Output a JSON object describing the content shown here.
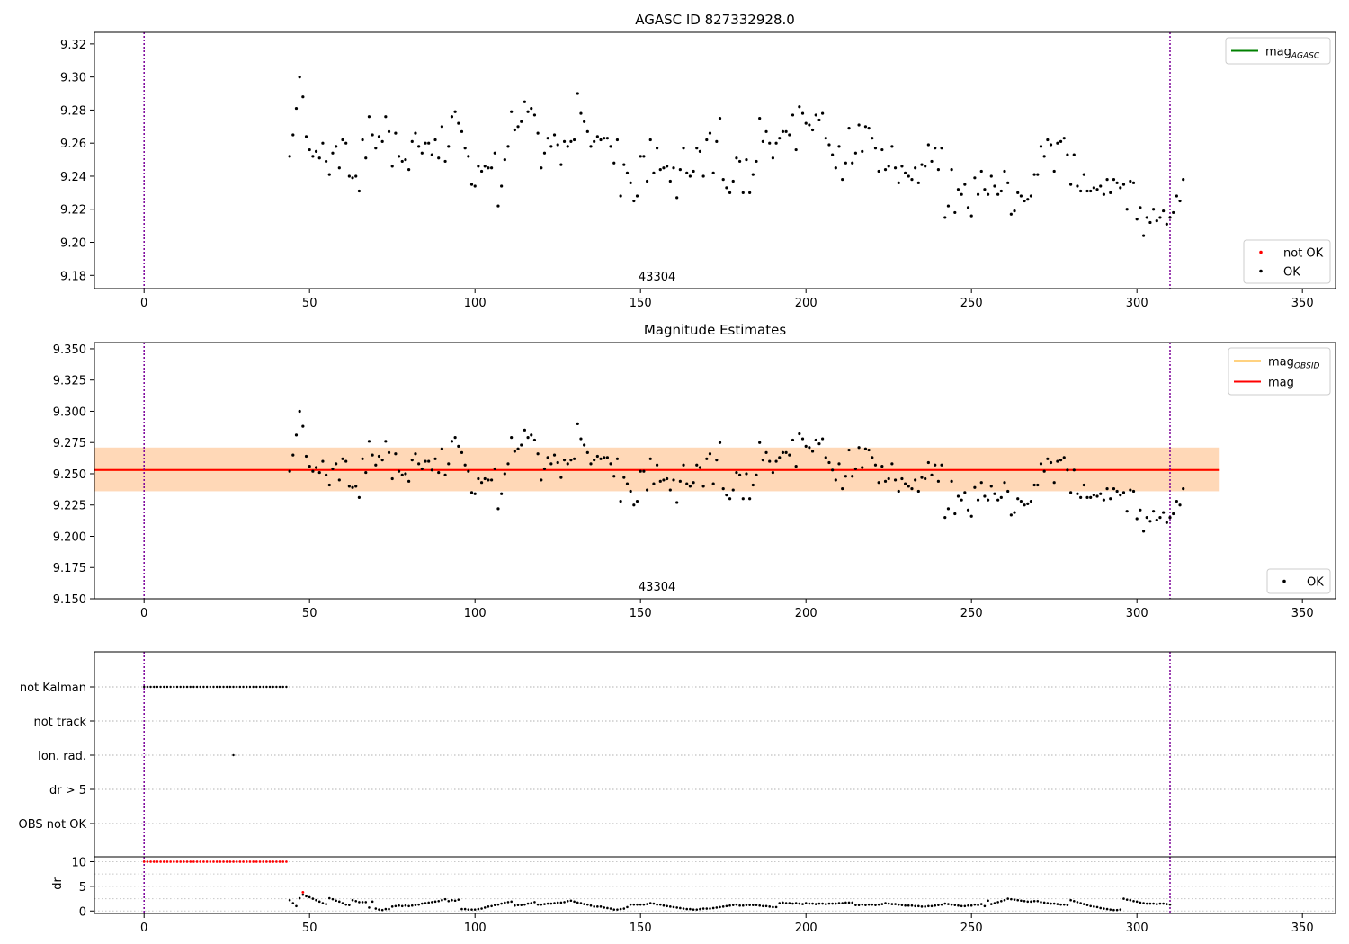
{
  "chart_data": [
    {
      "id": "panel1",
      "type": "scatter",
      "title": "AGASC ID 827332928.0",
      "xlim": [
        -15,
        360
      ],
      "ylim": [
        9.172,
        9.327
      ],
      "xticks": [
        0,
        50,
        100,
        150,
        200,
        250,
        300,
        350
      ],
      "yticks": [
        9.18,
        9.2,
        9.22,
        9.24,
        9.26,
        9.28,
        9.3,
        9.32
      ],
      "ytick_decimals": 2,
      "vlines": [
        0,
        310
      ],
      "obsid_label": "43304",
      "obsid_label_x": 155,
      "legend_top": [
        {
          "label": "mag",
          "sub": "AGASC",
          "color": "#008000",
          "kind": "line"
        }
      ],
      "legend_bottom": [
        {
          "label": "not OK",
          "color": "#ff0000",
          "kind": "dot"
        },
        {
          "label": "OK",
          "color": "#000000",
          "kind": "dot"
        }
      ],
      "series": [
        {
          "name": "OK",
          "color": "#000000",
          "x_start": 44,
          "x_step": 1,
          "values": [
            9.252,
            9.265,
            9.281,
            9.3,
            9.288,
            9.264,
            9.256,
            9.252,
            9.255,
            9.251,
            9.26,
            9.249,
            9.241,
            9.254,
            9.258,
            9.245,
            9.262,
            9.26,
            9.24,
            9.239,
            9.24,
            9.231,
            9.262,
            9.251,
            9.276,
            9.265,
            9.257,
            9.264,
            9.261,
            9.276,
            9.267,
            9.246,
            9.266,
            9.252,
            9.249,
            9.25,
            9.244,
            9.261,
            9.266,
            9.258,
            9.254,
            9.26,
            9.26,
            9.253,
            9.262,
            9.251,
            9.27,
            9.249,
            9.258,
            9.276,
            9.279,
            9.272,
            9.267,
            9.257,
            9.252,
            9.235,
            9.234,
            9.246,
            9.243,
            9.246,
            9.245,
            9.245,
            9.254,
            9.222,
            9.234,
            9.25,
            9.258,
            9.279,
            9.268,
            9.27,
            9.273,
            9.285,
            9.279,
            9.281,
            9.277,
            9.266,
            9.245,
            9.254,
            9.263,
            9.258,
            9.265,
            9.259,
            9.247,
            9.261,
            9.258,
            9.261,
            9.262,
            9.29,
            9.278,
            9.273,
            9.267,
            9.258,
            9.261,
            9.264,
            9.262,
            9.263,
            9.263,
            9.258,
            9.248,
            9.262,
            9.228,
            9.247,
            9.242,
            9.236,
            9.225,
            9.228,
            9.252,
            9.252,
            9.237,
            9.262,
            9.242,
            9.257,
            9.244,
            9.245,
            9.246,
            9.237,
            9.245,
            9.227,
            9.244,
            9.257,
            9.242,
            9.24,
            9.243,
            9.257,
            9.255,
            9.24,
            9.262,
            9.266,
            9.242,
            9.261,
            9.275,
            9.238,
            9.233,
            9.23,
            9.237,
            9.251,
            9.249,
            9.23,
            9.25,
            9.23,
            9.241,
            9.249,
            9.275,
            9.261,
            9.267,
            9.26,
            9.251,
            9.26,
            9.263,
            9.267,
            9.267,
            9.265,
            9.277,
            9.256,
            9.282,
            9.278,
            9.272,
            9.271,
            9.268,
            9.277,
            9.274,
            9.278,
            9.263,
            9.259,
            9.253,
            9.245,
            9.258,
            9.238,
            9.248,
            9.269,
            9.248,
            9.254,
            9.271,
            9.255,
            9.27,
            9.269,
            9.263,
            9.257,
            9.243,
            9.256,
            9.244,
            9.246,
            9.258,
            9.245,
            9.236,
            9.246,
            9.242,
            9.24,
            9.238,
            9.245,
            9.236,
            9.247,
            9.246,
            9.259,
            9.249,
            9.257,
            9.244,
            9.257,
            9.215,
            9.222,
            9.244,
            9.218,
            9.232,
            9.229,
            9.235,
            9.221,
            9.216,
            9.239,
            9.229,
            9.243,
            9.232,
            9.229,
            9.24,
            9.234,
            9.229,
            9.231,
            9.243,
            9.236,
            9.217,
            9.219,
            9.23,
            9.228,
            9.225,
            9.226,
            9.228,
            9.241,
            9.241,
            9.258,
            9.252,
            9.262,
            9.259,
            9.243,
            9.26,
            9.261,
            9.263,
            9.253,
            9.235,
            9.253,
            9.234,
            9.231,
            9.241,
            9.231,
            9.231,
            9.233,
            9.232,
            9.234,
            9.229,
            9.238,
            9.23,
            9.238,
            9.236,
            9.233,
            9.235,
            9.22,
            9.237,
            9.236,
            9.214,
            9.221,
            9.204,
            9.215,
            9.212,
            9.22,
            9.213,
            9.215,
            9.219,
            9.211,
            9.215,
            9.218,
            9.228,
            9.225,
            9.238
          ]
        }
      ]
    },
    {
      "id": "panel2",
      "type": "scatter",
      "title": "Magnitude Estimates",
      "xlim": [
        -15,
        360
      ],
      "ylim": [
        9.15,
        9.355
      ],
      "xticks": [
        0,
        50,
        100,
        150,
        200,
        250,
        300,
        350
      ],
      "yticks": [
        9.15,
        9.175,
        9.2,
        9.225,
        9.25,
        9.275,
        9.3,
        9.325,
        9.35
      ],
      "ytick_decimals": 3,
      "vlines": [
        0,
        310
      ],
      "obsid_label": "43304",
      "obsid_label_x": 155,
      "mag": 9.253,
      "mag_band": [
        9.236,
        9.271
      ],
      "mag_band_x": [
        -15,
        325
      ],
      "obsid_band": [
        9.236,
        9.271
      ],
      "obsid_band_x": [
        -15,
        325
      ],
      "legend_top": [
        {
          "label": "mag",
          "sub": "OBSID",
          "color": "#ffa500",
          "kind": "line"
        },
        {
          "label": "mag",
          "sub": "",
          "color": "#ff0000",
          "kind": "line"
        }
      ],
      "legend_bottom": [
        {
          "label": "OK",
          "color": "#000000",
          "kind": "dot"
        }
      ],
      "series_ref": "panel1"
    },
    {
      "id": "panel3",
      "type": "scatter",
      "xlim": [
        -15,
        360
      ],
      "xticks": [
        0,
        50,
        100,
        150,
        200,
        250,
        300,
        350
      ],
      "vlines": [
        0,
        310
      ],
      "flag_categories": [
        "not Kalman",
        "not track",
        "Ion. rad.",
        "dr > 5",
        "OBS not OK"
      ],
      "flags": {
        "not_kalman_x": [
          0,
          43
        ],
        "ion_rad_x": [
          27
        ]
      },
      "dr": {
        "ylabel": "dr",
        "yticks": [
          0,
          5,
          10
        ],
        "ylim": [
          -0.5,
          11
        ],
        "clipped_x_range": [
          0,
          43
        ],
        "clipped_value": 10,
        "red_point": {
          "x": 48,
          "y": 3.8
        },
        "x_start": 44,
        "values": [
          2.2,
          1.6,
          1.0,
          2.6,
          3.3,
          3.0,
          2.8,
          2.5,
          2.2,
          1.9,
          1.6,
          1.4,
          2.6,
          2.4,
          2.1,
          1.9,
          1.6,
          1.3,
          1.2,
          2.2,
          2.0,
          1.8,
          1.8,
          1.8,
          0.7,
          1.9,
          0.5,
          0.3,
          0.2,
          0.4,
          0.4,
          0.9,
          1.0,
          1.1,
          1.0,
          1.1,
          1.0,
          1.1,
          1.2,
          1.3,
          1.5,
          1.6,
          1.7,
          1.8,
          1.9,
          2.0,
          2.2,
          2.4,
          2.0,
          2.2,
          2.1,
          2.3,
          0.4,
          0.4,
          0.3,
          0.3,
          0.3,
          0.4,
          0.5,
          0.7,
          0.9,
          1.0,
          1.2,
          1.3,
          1.5,
          1.7,
          1.8,
          1.9,
          1.1,
          1.2,
          1.2,
          1.3,
          1.5,
          1.6,
          1.8,
          1.3,
          1.3,
          1.4,
          1.5,
          1.5,
          1.6,
          1.7,
          1.7,
          1.8,
          2.0,
          2.1,
          1.9,
          1.7,
          1.6,
          1.4,
          1.3,
          1.1,
          0.9,
          0.9,
          0.9,
          0.7,
          0.6,
          0.5,
          0.3,
          0.3,
          0.4,
          0.5,
          0.8,
          1.3,
          1.3,
          1.3,
          1.3,
          1.3,
          1.4,
          1.6,
          1.5,
          1.3,
          1.3,
          1.1,
          1.0,
          0.9,
          0.8,
          0.7,
          0.6,
          0.5,
          0.4,
          0.4,
          0.3,
          0.3,
          0.4,
          0.5,
          0.5,
          0.5,
          0.6,
          0.7,
          0.8,
          0.9,
          1.0,
          1.1,
          1.2,
          1.3,
          1.1,
          1.1,
          1.2,
          1.2,
          1.2,
          1.2,
          1.1,
          1.0,
          1.0,
          0.9,
          0.8,
          0.8,
          1.6,
          1.7,
          1.6,
          1.6,
          1.5,
          1.6,
          1.5,
          1.4,
          1.6,
          1.5,
          1.5,
          1.4,
          1.5,
          1.5,
          1.4,
          1.5,
          1.5,
          1.5,
          1.6,
          1.6,
          1.7,
          1.7,
          1.7,
          1.2,
          1.2,
          1.3,
          1.2,
          1.3,
          1.3,
          1.2,
          1.3,
          1.4,
          1.6,
          1.5,
          1.4,
          1.4,
          1.3,
          1.2,
          1.1,
          1.1,
          1.1,
          1.0,
          1.0,
          0.9,
          0.9,
          1.0,
          1.0,
          1.1,
          1.2,
          1.3,
          1.5,
          1.4,
          1.3,
          1.2,
          1.1,
          1.0,
          1.0,
          1.1,
          1.1,
          1.3,
          1.2,
          1.4,
          1.0,
          2.1,
          1.4,
          1.6,
          1.8,
          2.0,
          2.2,
          2.5,
          2.4,
          2.3,
          2.2,
          2.1,
          2.0,
          1.9,
          1.9,
          2.0,
          2.0,
          1.8,
          1.7,
          1.6,
          1.5,
          1.5,
          1.4,
          1.3,
          1.3,
          1.2,
          2.2,
          2.0,
          1.8,
          1.6,
          1.4,
          1.2,
          1.0,
          0.9,
          0.8,
          0.6,
          0.5,
          0.4,
          0.3,
          0.2,
          0.2,
          0.3,
          2.5,
          2.3,
          2.2,
          2.0,
          1.9,
          1.7,
          1.6,
          1.5,
          1.5,
          1.5,
          1.4,
          1.5,
          1.5,
          1.4,
          1.3
        ]
      }
    }
  ]
}
